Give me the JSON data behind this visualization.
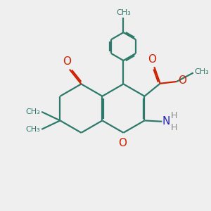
{
  "bg_color": "#efefef",
  "bond_color": "#2d7a6a",
  "o_color": "#cc2200",
  "n_color": "#2222bb",
  "h_color": "#888888",
  "lw": 1.6,
  "dbo": 0.055,
  "xlim": [
    0,
    10
  ],
  "ylim": [
    0,
    10
  ]
}
